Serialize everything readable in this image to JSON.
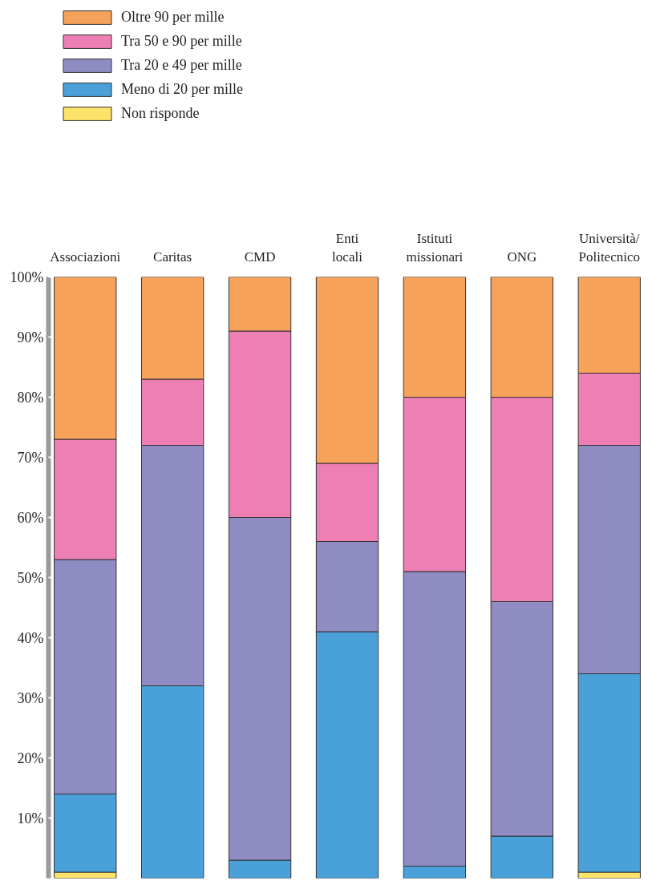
{
  "chart_data": {
    "type": "bar",
    "stacked": true,
    "categories": [
      "Associazioni",
      "Caritas",
      "CMD",
      "Enti\nlocali",
      "Istituti\nmissionari",
      "ONG",
      "Università/\nPolitecnico"
    ],
    "series": [
      {
        "name": "Non risponde",
        "color": "#fde36a",
        "values": [
          1,
          null,
          null,
          null,
          null,
          null,
          1
        ]
      },
      {
        "name": "Meno di 20 per mille",
        "color": "#4aa0d8",
        "values": [
          13,
          32,
          3,
          41,
          2,
          7,
          33
        ]
      },
      {
        "name": "Tra 20 e 49 per mille",
        "color": "#8f8cc4",
        "values": [
          39,
          40,
          57,
          15,
          49,
          39,
          38
        ]
      },
      {
        "name": "Tra 50 e 90 per mille",
        "color": "#ee7fb4",
        "values": [
          20,
          11,
          31,
          13,
          29,
          34,
          12
        ]
      },
      {
        "name": "Oltre 90 per mille",
        "color": "#f6a25a",
        "values": [
          27,
          17,
          9,
          31,
          20,
          20,
          16
        ]
      }
    ],
    "ylim": [
      0,
      100
    ],
    "yticks": [
      {
        "value": 10,
        "label": "10%"
      },
      {
        "value": 20,
        "label": "20%"
      },
      {
        "value": 30,
        "label": "30%"
      },
      {
        "value": 40,
        "label": "40%"
      },
      {
        "value": 50,
        "label": "50%"
      },
      {
        "value": 60,
        "label": "60%"
      },
      {
        "value": 70,
        "label": "70%"
      },
      {
        "value": 80,
        "label": "80%"
      },
      {
        "value": 90,
        "label": "90%"
      },
      {
        "value": 100,
        "label": "100%"
      }
    ],
    "legend": "top left",
    "grid": false
  }
}
